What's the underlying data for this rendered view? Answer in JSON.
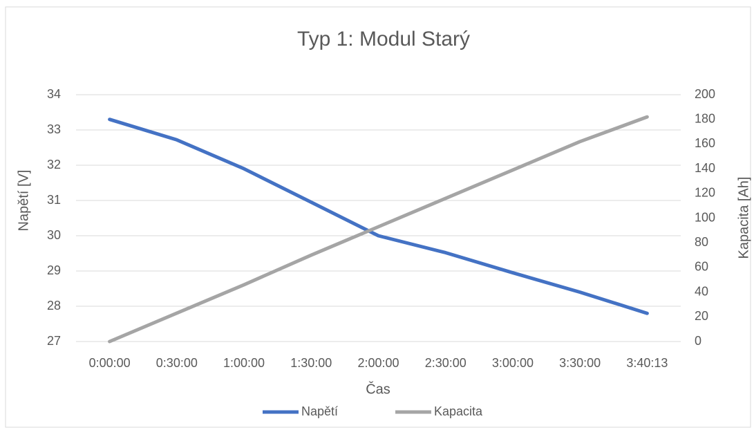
{
  "chart_data": {
    "type": "line",
    "title": "Typ 1: Modul Starý",
    "x_label": "Čas",
    "y_label": "Napětí [V]",
    "y2_label": "Kapacita [Ah]",
    "categories": [
      "0:00:00",
      "0:30:00",
      "1:00:00",
      "1:30:00",
      "2:00:00",
      "2:30:00",
      "3:00:00",
      "3:30:00",
      "3:40:13"
    ],
    "series": [
      {
        "name": "Napětí",
        "color": "#4472c4",
        "values": [
          33.3,
          32.72,
          31.9,
          30.95,
          30.0,
          29.52,
          28.95,
          28.4,
          27.8
        ]
      },
      {
        "name": "Kapacita",
        "color": "#a5a5a5",
        "axis": "y2",
        "values": [
          0,
          23,
          46,
          70,
          93,
          116,
          139,
          162,
          182
        ]
      }
    ],
    "ylim": [
      27,
      34
    ],
    "yticks": [
      27,
      28,
      29,
      30,
      31,
      32,
      33,
      34
    ],
    "y2lim": [
      0,
      200
    ],
    "y2ticks": [
      0,
      20,
      40,
      60,
      80,
      100,
      120,
      140,
      160,
      180,
      200
    ],
    "grid": true,
    "legend": "bottom"
  }
}
